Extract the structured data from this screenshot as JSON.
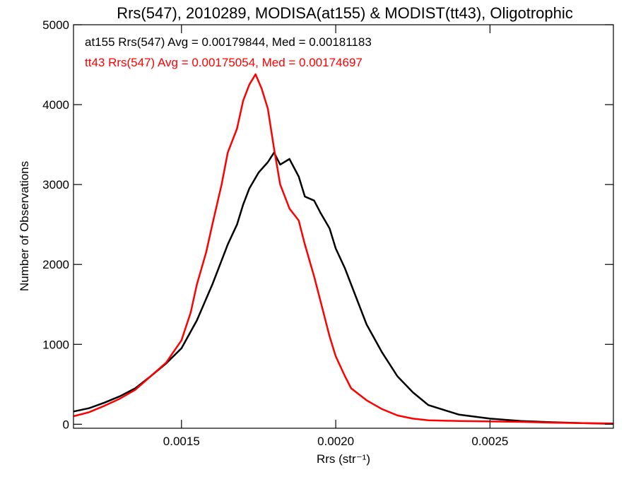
{
  "chart_data": {
    "type": "line",
    "title": "Rrs(547), 2010289, MODISA(at155) & MODIST(tt43), Oligotrophic",
    "xlabel": "Rrs (str⁻¹)",
    "ylabel": "Number of Observations",
    "xlim": [
      0.00115,
      0.0029
    ],
    "ylim": [
      -50,
      5000
    ],
    "xticks": [
      0.0015,
      0.002,
      0.0025
    ],
    "xtick_labels": [
      "0.0015",
      "0.0020",
      "0.0025"
    ],
    "yticks": [
      0,
      1000,
      2000,
      3000,
      4000,
      5000
    ],
    "ytick_labels": [
      "0",
      "1000",
      "2000",
      "3000",
      "4000",
      "5000"
    ],
    "grid": false,
    "annotations": [
      {
        "text": "at155 Rrs(547) Avg = 0.00179844, Med = 0.00181183",
        "color": "#000000"
      },
      {
        "text": "tt43 Rrs(547) Avg = 0.00175054, Med = 0.00174697",
        "color": "#ff0000"
      }
    ],
    "series": [
      {
        "color": "#000000",
        "x": [
          0.00115,
          0.0012,
          0.00125,
          0.0013,
          0.00135,
          0.0014,
          0.00145,
          0.0015,
          0.00155,
          0.0016,
          0.00163,
          0.00165,
          0.00168,
          0.0017,
          0.00172,
          0.00175,
          0.00178,
          0.0018,
          0.00182,
          0.00185,
          0.00188,
          0.0019,
          0.00193,
          0.00195,
          0.00198,
          0.002,
          0.00203,
          0.00205,
          0.0021,
          0.00215,
          0.0022,
          0.00225,
          0.0023,
          0.0024,
          0.0025,
          0.0026,
          0.0027,
          0.0028,
          0.0029
        ],
        "y": [
          160,
          200,
          270,
          350,
          450,
          600,
          760,
          950,
          1300,
          1750,
          2050,
          2250,
          2500,
          2750,
          2950,
          3150,
          3280,
          3400,
          3250,
          3320,
          3100,
          2850,
          2800,
          2650,
          2450,
          2200,
          1950,
          1750,
          1250,
          900,
          600,
          400,
          240,
          120,
          70,
          40,
          25,
          15,
          5
        ]
      },
      {
        "color": "#ff0000",
        "x": [
          0.00115,
          0.0012,
          0.00125,
          0.0013,
          0.00135,
          0.0014,
          0.00145,
          0.0015,
          0.00153,
          0.00155,
          0.00158,
          0.0016,
          0.00163,
          0.00165,
          0.00168,
          0.0017,
          0.00172,
          0.00174,
          0.00176,
          0.00178,
          0.0018,
          0.00182,
          0.00185,
          0.00188,
          0.0019,
          0.00193,
          0.00195,
          0.00198,
          0.002,
          0.00203,
          0.00205,
          0.0021,
          0.00215,
          0.0022,
          0.00225,
          0.0023,
          0.0024,
          0.0025,
          0.0026,
          0.0027,
          0.0028,
          0.0029
        ],
        "y": [
          100,
          150,
          230,
          320,
          430,
          600,
          770,
          1050,
          1400,
          1750,
          2150,
          2500,
          3000,
          3400,
          3700,
          4050,
          4250,
          4380,
          4200,
          3950,
          3450,
          3000,
          2700,
          2550,
          2250,
          1850,
          1550,
          1100,
          850,
          600,
          450,
          300,
          190,
          110,
          70,
          50,
          40,
          35,
          30,
          20,
          15,
          10
        ]
      }
    ]
  }
}
